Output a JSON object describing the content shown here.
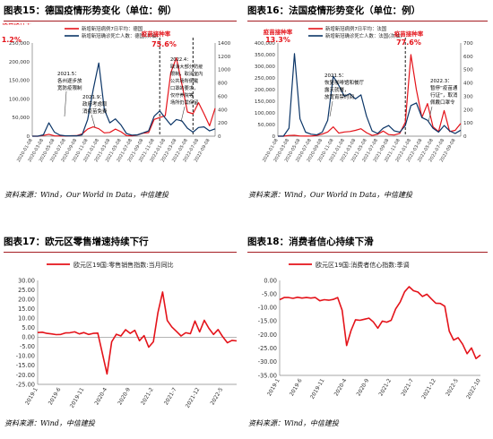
{
  "panels": [
    {
      "title": "图表15：德国疫情形势变化（单位：例）",
      "source": "资料来源：Wind，Our World in Data，中信建投",
      "chart_data": {
        "type": "line",
        "legend": [
          "新增新冠病例7日平均：德国",
          "新增新冠确诊死亡人数：德国(次轴)"
        ],
        "legend_placement": "top",
        "x": [
          "2020-01-08",
          "2020-02-08",
          "2020-03-08",
          "2020-04-08",
          "2020-05-08",
          "2020-06-08",
          "2020-07-08",
          "2020-08-08",
          "2020-09-08",
          "2020-10-08",
          "2020-11-08",
          "2020-12-08",
          "2021-01-08",
          "2021-02-08",
          "2021-03-08",
          "2021-04-08",
          "2021-05-08",
          "2021-06-08",
          "2021-07-08",
          "2021-08-08",
          "2021-09-08",
          "2021-10-08",
          "2021-11-08",
          "2021-12-08",
          "2022-01-08",
          "2022-02-08",
          "2022-03-08",
          "2022-04-08",
          "2022-05-08",
          "2022-06-08",
          "2022-07-08",
          "2022-08-08",
          "2022-09-08",
          "2022-10-08"
        ],
        "xtick_step": 2,
        "ylim": [
          0,
          250000
        ],
        "yticks": [
          "0",
          "50,000",
          "100,000",
          "150,000",
          "200,000",
          "250,000"
        ],
        "y2lim": [
          0,
          1400
        ],
        "y2ticks": [
          "0",
          "200",
          "400",
          "600",
          "800",
          "1000",
          "1200",
          "1400"
        ],
        "series": [
          {
            "name": "新增新冠病例7日平均：德国",
            "color": "#e4131a",
            "values": [
              0,
              0,
              2000,
              5000,
              900,
              400,
              500,
              1200,
              1500,
              6000,
              19000,
              25000,
              20000,
              9000,
              10000,
              19000,
              12000,
              1500,
              900,
              3500,
              8000,
              9500,
              45000,
              50000,
              55000,
              170000,
              210000,
              140000,
              65000,
              60000,
              90000,
              60000,
              28000,
              75000
            ]
          },
          {
            "name": "新增新冠确诊死亡人数：德国(次轴)",
            "color": "#0b3567",
            "values": [
              0,
              0,
              20,
              200,
              60,
              15,
              5,
              5,
              5,
              20,
              250,
              700,
              1100,
              400,
              200,
              260,
              170,
              40,
              15,
              20,
              50,
              80,
              300,
              380,
              270,
              170,
              250,
              230,
              120,
              60,
              130,
              140,
              80,
              110
            ]
          }
        ],
        "vlines": [
          {
            "x": "2021-12-08"
          },
          {
            "x": "2022-06-08"
          }
        ],
        "text_labels": {
          "vacc": "疫苗接种率",
          "vacc1": "11.2%",
          "vacc2": "75.6%",
          "a1": "2021.5：",
          "a2": "各州逐步放",
          "a3": "宽防疫限制",
          "b1": "2021.9：",
          "b2": "政府考虑取",
          "b3": "消疫苗免费",
          "c1": "2022.4：",
          "c2": "取消大部分防疫",
          "c3": "限制，取消室内",
          "c4": "公共场所佩戴",
          "c5": "口罩的要求，",
          "c6": "仅疗养院等",
          "c7": "场所仍需保留"
        }
      }
    },
    {
      "title": "图表16：法国疫情形势变化（单位：例）",
      "source": "资料来源：Wind，Our World in Data，中信建投",
      "chart_data": {
        "type": "line",
        "legend": [
          "新增新冠病例7日平均：法国",
          "新增新冠确诊死亡人数：法国(次轴)"
        ],
        "legend_placement": "top",
        "x": [
          "2020-01-08",
          "2020-02-08",
          "2020-03-08",
          "2020-04-08",
          "2020-05-08",
          "2020-06-08",
          "2020-07-08",
          "2020-08-08",
          "2020-09-08",
          "2020-10-08",
          "2020-11-08",
          "2020-12-08",
          "2021-01-08",
          "2021-02-08",
          "2021-03-08",
          "2021-04-08",
          "2021-05-08",
          "2021-06-08",
          "2021-07-08",
          "2021-08-08",
          "2021-09-08",
          "2021-10-08",
          "2021-11-08",
          "2021-12-08",
          "2022-01-08",
          "2022-02-08",
          "2022-03-08",
          "2022-04-08",
          "2022-05-08",
          "2022-06-08",
          "2022-07-08",
          "2022-08-08",
          "2022-09-08",
          "2022-10-08"
        ],
        "xtick_step": 2,
        "ylim": [
          0,
          400000
        ],
        "yticks": [
          "0",
          "50,000",
          "100,000",
          "150,000",
          "200,000",
          "250,000",
          "300,000",
          "350,000",
          "400,000"
        ],
        "y2lim": [
          0,
          700
        ],
        "y2ticks": [
          "0",
          "100",
          "200",
          "300",
          "400",
          "500",
          "600",
          "700"
        ],
        "series": [
          {
            "name": "新增新冠病例7日平均：法国",
            "color": "#e4131a",
            "values": [
              0,
              0,
              3000,
              4000,
              600,
              400,
              500,
              3000,
              9000,
              18000,
              40000,
              13000,
              18000,
              20000,
              25000,
              32000,
              15000,
              3000,
              8000,
              22000,
              7000,
              5000,
              12000,
              60000,
              350000,
              200000,
              80000,
              140000,
              40000,
              20000,
              110000,
              20000,
              25000,
              55000
            ]
          },
          {
            "name": "新增新冠确诊死亡人数：法国(次轴)",
            "color": "#0b3567",
            "values": [
              0,
              0,
              60,
              620,
              130,
              30,
              15,
              10,
              30,
              120,
              450,
              380,
              300,
              320,
              280,
              310,
              150,
              40,
              20,
              60,
              80,
              40,
              30,
              80,
              230,
              250,
              140,
              120,
              60,
              30,
              80,
              40,
              20,
              45
            ]
          }
        ],
        "vlines": [
          {
            "x": "2021-12-08"
          }
        ],
        "text_labels": {
          "vacc": "疫苗接种率",
          "vacc1": "13.3%",
          "vacc2": "77.6%",
          "a1": "2021.5：",
          "a2": "恢复咖啡馆和餐厅",
          "a3": "露天就餐，",
          "a4": "放宽宵禁时间",
          "b1": "2022.3：",
          "b2": "暂停“疫苗通",
          "b3": "行证”，取消",
          "b4": "佩戴口罩令"
        }
      }
    },
    {
      "title": "图表17：欧元区零售增速持续下行",
      "source": "资料来源：Wind，中信建投",
      "chart_data": {
        "type": "line",
        "legend": [
          "欧元区19国:零售销售指数:当月同比"
        ],
        "legend_placement": "top-left",
        "x": [
          "2019-1",
          "2019-2",
          "2019-3",
          "2019-4",
          "2019-5",
          "2019-6",
          "2019-7",
          "2019-8",
          "2019-9",
          "2019-10",
          "2019-11",
          "2019-12",
          "2020-1",
          "2020-2",
          "2020-3",
          "2020-4",
          "2020-5",
          "2020-6",
          "2020-7",
          "2020-8",
          "2020-9",
          "2020-10",
          "2020-11",
          "2020-12",
          "2021-1",
          "2021-2",
          "2021-3",
          "2021-4",
          "2021-5",
          "2021-6",
          "2021-7",
          "2021-8",
          "2021-9",
          "2021-10",
          "2021-11",
          "2021-12",
          "2022-1",
          "2022-2",
          "2022-3",
          "2022-4",
          "2022-5",
          "2022-6",
          "2022-7",
          "2022-8"
        ],
        "xticks": [
          "2019-1",
          "2019-6",
          "2019-11",
          "2020-4",
          "2020-9",
          "2021-2",
          "2021-7",
          "2021-12",
          "2022-5"
        ],
        "ylim": [
          -25,
          30
        ],
        "yticks": [
          "30.00",
          "25.00",
          "20.00",
          "15.00",
          "10.00",
          "5.00",
          "0.00",
          "-5.00",
          "-10.00",
          "-15.00",
          "-20.00",
          "-25.00"
        ],
        "series": [
          {
            "name": "欧元区19国:零售销售指数:当月同比",
            "color": "#e4131a",
            "values": [
              2.4,
              2.6,
              2.0,
              1.7,
              1.3,
              1.4,
              2.2,
              2.3,
              2.8,
              1.7,
              2.4,
              1.4,
              2.0,
              2.1,
              -8.8,
              -19.5,
              -2.5,
              1.5,
              0.6,
              3.9,
              2.0,
              3.6,
              -1.9,
              0.8,
              -5.3,
              -2.5,
              13.0,
              23.9,
              8.8,
              5.4,
              3.0,
              0.6,
              2.3,
              1.8,
              8.5,
              2.8,
              8.9,
              4.7,
              1.4,
              4.0,
              0.2,
              -3.0,
              -1.7,
              -2.0
            ]
          }
        ]
      }
    },
    {
      "title": "图表18：消费者信心持续下滑",
      "source": "资料来源：Wind，中信建投",
      "chart_data": {
        "type": "line",
        "legend": [
          "欧元区19国:消费者信心指数:季调"
        ],
        "legend_placement": "top-left",
        "x": [
          "2019-1",
          "2019-2",
          "2019-3",
          "2019-4",
          "2019-5",
          "2019-6",
          "2019-7",
          "2019-8",
          "2019-9",
          "2019-10",
          "2019-11",
          "2019-12",
          "2020-1",
          "2020-2",
          "2020-3",
          "2020-4",
          "2020-5",
          "2020-6",
          "2020-7",
          "2020-8",
          "2020-9",
          "2020-10",
          "2020-11",
          "2020-12",
          "2021-1",
          "2021-2",
          "2021-3",
          "2021-4",
          "2021-5",
          "2021-6",
          "2021-7",
          "2021-8",
          "2021-9",
          "2021-10",
          "2021-11",
          "2021-12",
          "2022-1",
          "2022-2",
          "2022-3",
          "2022-4",
          "2022-5",
          "2022-6",
          "2022-7",
          "2022-8",
          "2022-9",
          "2022-10"
        ],
        "xticks": [
          "2019-1",
          "2019-6",
          "2019-11",
          "2020-4",
          "2020-9",
          "2021-2",
          "2021-7",
          "2021-12",
          "2022-5",
          "2022-10"
        ],
        "ylim": [
          -35,
          0
        ],
        "yticks": [
          "0.00",
          "-5.00",
          "-10.00",
          "-15.00",
          "-20.00",
          "-25.00",
          "-30.00",
          "-35.00"
        ],
        "series": [
          {
            "name": "欧元区19国:消费者信心指数:季调",
            "color": "#e4131a",
            "values": [
              -7.1,
              -6.3,
              -6.3,
              -6.6,
              -6.2,
              -6.5,
              -6.3,
              -6.5,
              -6.3,
              -7.5,
              -7.1,
              -7.3,
              -7.0,
              -6.3,
              -11.0,
              -24.0,
              -18.5,
              -14.5,
              -14.7,
              -14.3,
              -13.9,
              -15.3,
              -17.6,
              -15.0,
              -15.4,
              -14.7,
              -10.5,
              -8.0,
              -4.2,
              -2.3,
              -3.8,
              -4.3,
              -5.9,
              -5.1,
              -6.8,
              -8.4,
              -8.5,
              -9.5,
              -18.7,
              -22.0,
              -21.1,
              -23.5,
              -27.0,
              -24.9,
              -28.8,
              -27.5
            ]
          }
        ]
      }
    }
  ]
}
